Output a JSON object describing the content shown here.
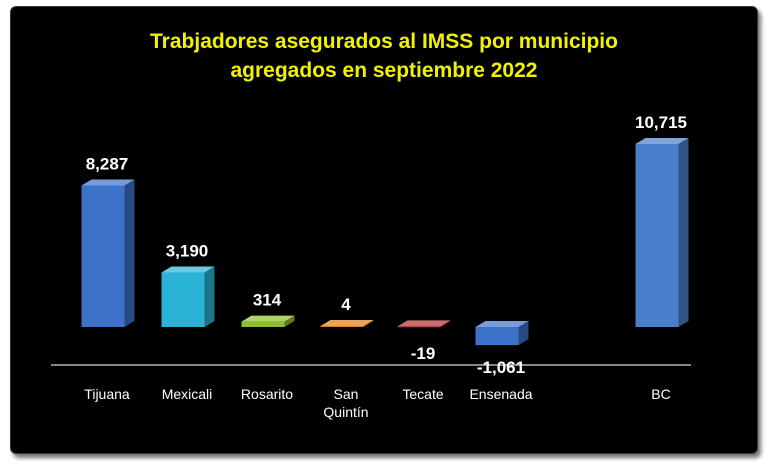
{
  "chart_data": {
    "type": "bar",
    "title": "Trabjadores asegurados al IMSS por municipio",
    "subtitle": "agregados en septiembre 2022",
    "categories": [
      "Tijuana",
      "Mexicali",
      "Rosarito",
      "San Quintín",
      "Tecate",
      "Ensenada",
      "BC"
    ],
    "values": [
      8287,
      3190,
      314,
      4,
      -19,
      -1061,
      10715
    ],
    "value_labels": [
      "8,287",
      "3,190",
      "314",
      "4",
      "-19",
      "-1,061",
      "10,715"
    ],
    "colors": [
      "#3d72c9",
      "#2ab3d6",
      "#8cbf2e",
      "#e07a1f",
      "#b03030",
      "#3d72c9",
      "#4a7fcb"
    ],
    "ylim": [
      -1500,
      11000
    ],
    "grid": false,
    "legend": "none"
  }
}
